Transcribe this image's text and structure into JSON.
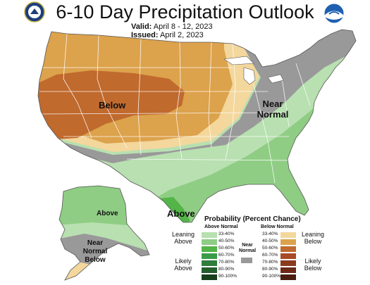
{
  "header": {
    "title": "6-10 Day Precipitation Outlook",
    "valid_label": "Valid:",
    "valid_value": "April 8 - 12, 2023",
    "issued_label": "Issued:",
    "issued_value": "April 2, 2023",
    "logo_left_icon": "doc-seal-icon",
    "logo_right_icon": "noaa-logo-icon"
  },
  "map_labels": {
    "below": "Below",
    "near_normal": [
      "Near",
      "Normal"
    ],
    "above_florida": "Above",
    "above_alaska": "Above",
    "near_normal_below_alaska": [
      "Near",
      "Normal",
      "Below"
    ]
  },
  "legend": {
    "title": "Probability (Percent Chance)",
    "above_header": "Above Normal",
    "below_header": "Below Normal",
    "near_header": [
      "Near",
      "Normal"
    ],
    "above_items": [
      {
        "label": "33-40%",
        "color": "#b8e0b0"
      },
      {
        "label": "40-50%",
        "color": "#8fcd84"
      },
      {
        "label": "50-60%",
        "color": "#53b447"
      },
      {
        "label": "60-70%",
        "color": "#3b9b49"
      },
      {
        "label": "70-80%",
        "color": "#2e7d3b"
      },
      {
        "label": "80-90%",
        "color": "#235f2c"
      },
      {
        "label": "90-100%",
        "color": "#16401c"
      }
    ],
    "below_items": [
      {
        "label": "33-40%",
        "color": "#f3d79c"
      },
      {
        "label": "40-50%",
        "color": "#dca24c"
      },
      {
        "label": "50-60%",
        "color": "#c06a2e"
      },
      {
        "label": "60-70%",
        "color": "#a84a26"
      },
      {
        "label": "70-80%",
        "color": "#8c3a1f"
      },
      {
        "label": "80-90%",
        "color": "#6b2a17"
      },
      {
        "label": "90-100%",
        "color": "#4a1c10"
      }
    ],
    "near_color": "#999999",
    "leaning_above": [
      "Leaning",
      "Above"
    ],
    "likely_above": [
      "Likely",
      "Above"
    ],
    "leaning_below": [
      "Leaning",
      "Below"
    ],
    "likely_below": [
      "Likely",
      "Below"
    ]
  },
  "colors": {
    "below_40_50": "#dca24c",
    "below_50_60": "#c06a2e",
    "below_33_40": "#f3d79c",
    "near": "#999999",
    "above_33_40": "#b8e0b0",
    "above_40_50": "#8fcd84",
    "above_50_60": "#53b447",
    "state_lines": "#ffffff",
    "outline": "#555555"
  }
}
